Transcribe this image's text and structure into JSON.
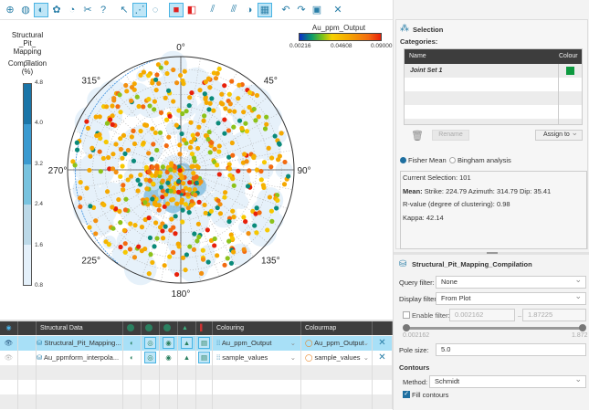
{
  "toolbar": {
    "buttons": [
      {
        "icon": "add-icon",
        "active": false
      },
      {
        "icon": "globe-icon",
        "active": false
      },
      {
        "icon": "stereonet-icon",
        "active": true
      },
      {
        "icon": "rose-diagram-icon",
        "active": false
      },
      {
        "icon": "histogram-icon",
        "active": false
      },
      {
        "icon": "tools-icon",
        "active": false
      },
      {
        "icon": "help-icon",
        "active": false
      },
      {
        "icon": "select-arrow-icon",
        "active": false
      },
      {
        "icon": "select-poles-icon",
        "active": true
      },
      {
        "icon": "lasso-select-icon",
        "active": false
      },
      {
        "icon": "selection-fill-icon",
        "active": true
      },
      {
        "icon": "selection-remove-icon",
        "active": false
      },
      {
        "icon": "great-circles-icon",
        "active": false
      },
      {
        "icon": "clear-selection-icon",
        "active": false
      },
      {
        "icon": "invert-icon",
        "active": false
      },
      {
        "icon": "grid-icon",
        "active": true
      },
      {
        "icon": "undo-icon",
        "active": false
      },
      {
        "icon": "redo-icon",
        "active": false
      },
      {
        "icon": "save-icon",
        "active": false
      },
      {
        "icon": "close-icon",
        "active": false
      }
    ]
  },
  "plot": {
    "legend": {
      "title_lines": [
        "Structural",
        "_Pit_",
        "Mapping",
        "_",
        "Compilation",
        "(%)"
      ],
      "ticks": [
        "4.8",
        "4.0",
        "3.2",
        "2.4",
        "1.6",
        "0.8"
      ],
      "colors": [
        "#1a75a8",
        "#3a9ad0",
        "#78c3df",
        "#bcd9e8",
        "#e4f0fa"
      ]
    },
    "colorbar": {
      "title": "Au_ppm_Output",
      "ticks": [
        "0.00216",
        "0.04608",
        "0.09000"
      ]
    },
    "directions": {
      "n": "0°",
      "ne": "45°",
      "e": "90°",
      "se": "135°",
      "s": "180°",
      "sw": "225°",
      "w": "270°",
      "nw": "315°"
    }
  },
  "table": {
    "headers": {
      "structural_data": "Structural Data",
      "colouring": "Colouring",
      "colourmap": "Colourmap"
    },
    "rows": [
      {
        "name": "Structural_Pit_Mapping...",
        "colouring": "Au_ppm_Output",
        "colourmap": "Au_ppm_Output",
        "visible": true,
        "selected": true
      },
      {
        "name": "Au_ppmform_interpola...",
        "colouring": "sample_values",
        "colourmap": "sample_values",
        "visible": false,
        "selected": false
      }
    ]
  },
  "selection": {
    "title": "Selection",
    "categories_label": "Categories:",
    "col_name": "Name",
    "col_colour": "Colour",
    "categories": [
      {
        "name": "Joint Set 1",
        "colour": "#0e9a40"
      }
    ],
    "rename": "Rename",
    "assign": "Assign to",
    "fisher": "Fisher Mean",
    "bingham": "Bingham analysis",
    "mode": "Fisher Mean",
    "current": "Current Selection: 101",
    "mean_label": "Mean:",
    "mean": " Strike: 224.79 Azimuth: 314.79 Dip: 35.41",
    "rvalue": "R-value (degree of clustering): 0.98",
    "kappa": "Kappa: 42.14"
  },
  "props": {
    "title": "Structural_Pit_Mapping_Compilation",
    "query_label": "Query filter:",
    "query": "None",
    "display_label": "Display filter",
    "display": "From Plot",
    "enable_label": "Enable filter:",
    "enable_checked": false,
    "min": "0.002162",
    "max": "1.87225",
    "slider_min": "0.002162",
    "slider_max": "1.872",
    "pole_label": "Pole size:",
    "pole": "5.0",
    "contours": "Contours",
    "method_label": "Method:",
    "method": "Schmidt",
    "fill_label": "Fill contours",
    "fill_checked": true
  }
}
